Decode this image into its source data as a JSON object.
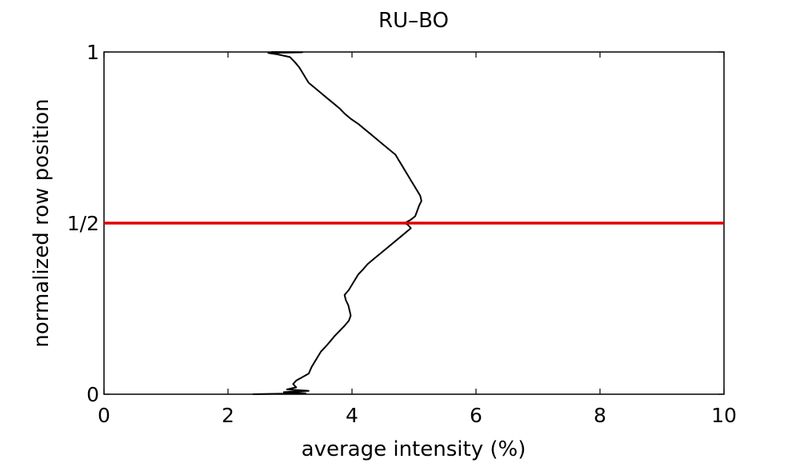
{
  "chart_data": {
    "type": "line",
    "title": "RU–BO",
    "xlabel": "average intensity (%)",
    "ylabel": "normalized row position",
    "xlim": [
      0,
      10
    ],
    "ylim": [
      0,
      1
    ],
    "xticks": [
      {
        "value": 0,
        "label": "0"
      },
      {
        "value": 2,
        "label": "2"
      },
      {
        "value": 4,
        "label": "4"
      },
      {
        "value": 6,
        "label": "6"
      },
      {
        "value": 8,
        "label": "8"
      },
      {
        "value": 10,
        "label": "10"
      }
    ],
    "yticks": [
      {
        "value": 0,
        "label": "0"
      },
      {
        "value": 0.5,
        "label": "1/2"
      },
      {
        "value": 1,
        "label": "1"
      }
    ],
    "grid": false,
    "series": [
      {
        "color": "#000000",
        "points": [
          [
            2.4,
            0.0
          ],
          [
            3.25,
            0.003
          ],
          [
            2.9,
            0.006
          ],
          [
            3.3,
            0.01
          ],
          [
            2.95,
            0.014
          ],
          [
            3.1,
            0.02
          ],
          [
            3.05,
            0.03
          ],
          [
            3.1,
            0.04
          ],
          [
            3.2,
            0.05
          ],
          [
            3.3,
            0.06
          ],
          [
            3.35,
            0.08
          ],
          [
            3.4,
            0.095
          ],
          [
            3.45,
            0.11
          ],
          [
            3.5,
            0.125
          ],
          [
            3.58,
            0.14
          ],
          [
            3.65,
            0.155
          ],
          [
            3.72,
            0.17
          ],
          [
            3.8,
            0.185
          ],
          [
            3.88,
            0.2
          ],
          [
            3.95,
            0.215
          ],
          [
            3.98,
            0.23
          ],
          [
            3.96,
            0.245
          ],
          [
            3.94,
            0.26
          ],
          [
            3.9,
            0.275
          ],
          [
            3.88,
            0.29
          ],
          [
            3.95,
            0.305
          ],
          [
            4.0,
            0.32
          ],
          [
            4.05,
            0.335
          ],
          [
            4.1,
            0.35
          ],
          [
            4.18,
            0.365
          ],
          [
            4.25,
            0.38
          ],
          [
            4.35,
            0.395
          ],
          [
            4.45,
            0.41
          ],
          [
            4.55,
            0.425
          ],
          [
            4.65,
            0.44
          ],
          [
            4.75,
            0.455
          ],
          [
            4.85,
            0.47
          ],
          [
            4.95,
            0.485
          ],
          [
            4.9,
            0.495
          ],
          [
            4.85,
            0.5
          ],
          [
            4.95,
            0.51
          ],
          [
            5.02,
            0.52
          ],
          [
            5.05,
            0.535
          ],
          [
            5.08,
            0.55
          ],
          [
            5.12,
            0.565
          ],
          [
            5.1,
            0.58
          ],
          [
            5.05,
            0.595
          ],
          [
            5.0,
            0.61
          ],
          [
            4.95,
            0.625
          ],
          [
            4.9,
            0.64
          ],
          [
            4.85,
            0.655
          ],
          [
            4.8,
            0.67
          ],
          [
            4.75,
            0.685
          ],
          [
            4.7,
            0.7
          ],
          [
            4.6,
            0.715
          ],
          [
            4.5,
            0.73
          ],
          [
            4.4,
            0.745
          ],
          [
            4.3,
            0.76
          ],
          [
            4.2,
            0.775
          ],
          [
            4.1,
            0.79
          ],
          [
            3.98,
            0.805
          ],
          [
            3.88,
            0.82
          ],
          [
            3.8,
            0.835
          ],
          [
            3.7,
            0.85
          ],
          [
            3.6,
            0.865
          ],
          [
            3.5,
            0.88
          ],
          [
            3.4,
            0.895
          ],
          [
            3.3,
            0.91
          ],
          [
            3.25,
            0.925
          ],
          [
            3.2,
            0.94
          ],
          [
            3.15,
            0.955
          ],
          [
            3.08,
            0.97
          ],
          [
            3.0,
            0.985
          ],
          [
            2.8,
            0.993
          ],
          [
            2.65,
            0.997
          ],
          [
            3.2,
            0.999
          ],
          [
            2.7,
            1.0
          ]
        ]
      }
    ],
    "reference_line": {
      "y": 0.5,
      "color": "#e00000"
    }
  }
}
